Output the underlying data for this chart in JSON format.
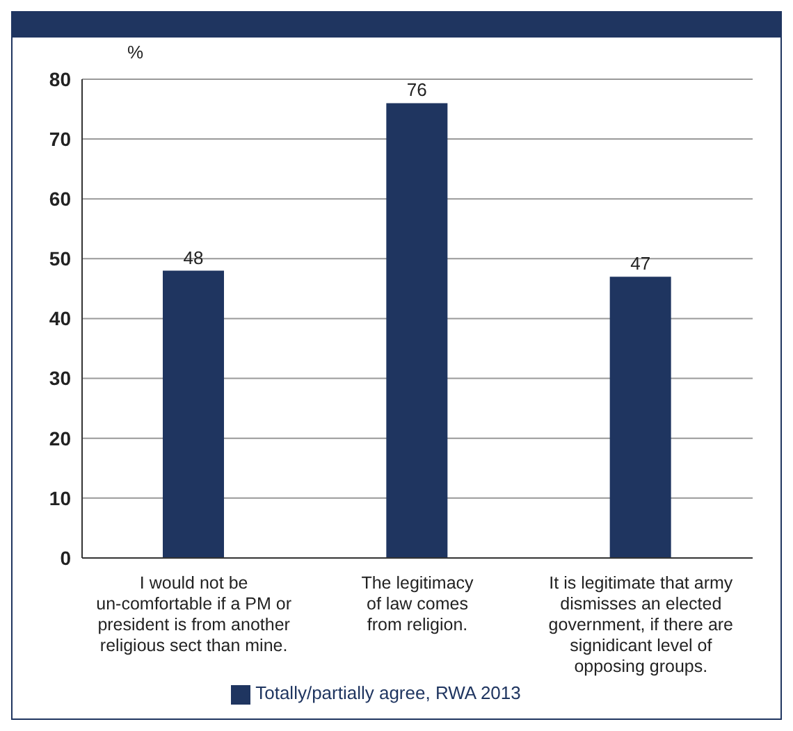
{
  "chart_data": {
    "type": "bar",
    "ylabel": "%",
    "categories": [
      "I would not be un-comfortable if a PM or president is from another religious sect than mine.",
      "The legitimacy of law comes from religion.",
      "It is legitimate that army dismisses an elected government, if there are signidicant level of opposing groups."
    ],
    "series": [
      {
        "name": "Totally/partially agree, RWA 2013",
        "color": "#1f3560",
        "values": [
          48,
          76,
          47
        ]
      }
    ],
    "ylim": [
      0,
      80
    ],
    "yticks": [
      0,
      10,
      20,
      30,
      40,
      50,
      60,
      70,
      80
    ],
    "grid": "y",
    "legend": "bottom",
    "data_labels": true
  }
}
